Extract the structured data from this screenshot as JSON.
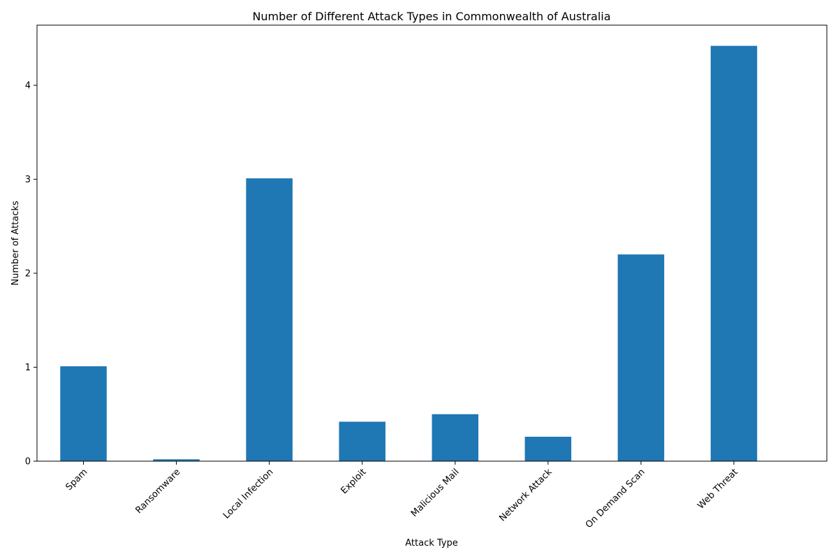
{
  "chart_data": {
    "type": "bar",
    "title": "Number of Different Attack Types in Commonwealth of Australia",
    "xlabel": "Attack Type",
    "ylabel": "Number of Attacks",
    "categories": [
      "Spam",
      "Ransomware",
      "Local Infection",
      "Exploit",
      "Malicious Mail",
      "Network Attack",
      "On Demand Scan",
      "Web Threat"
    ],
    "values": [
      1.01,
      0.02,
      3.01,
      0.42,
      0.5,
      0.26,
      2.2,
      4.42
    ],
    "ylim": [
      0,
      4.64
    ],
    "yticks": [
      0,
      1,
      2,
      3,
      4
    ],
    "bar_color": "#1f77b4",
    "grid": false,
    "legend": "none"
  }
}
